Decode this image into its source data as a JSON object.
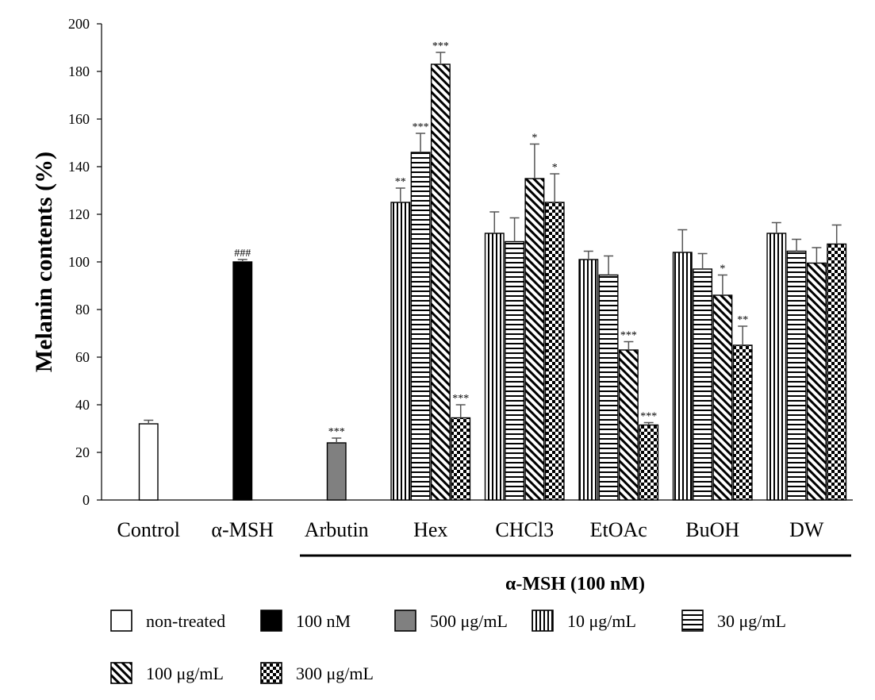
{
  "chart_data": {
    "type": "bar",
    "title": "",
    "xlabel": "",
    "ylabel": "Melanin contents (%)",
    "ylim": [
      0,
      200
    ],
    "yticks": [
      0,
      20,
      40,
      60,
      80,
      100,
      120,
      140,
      160,
      180,
      200
    ],
    "grid": false,
    "legend_position": "bottom",
    "bracket_label": "α-MSH (100 nM)",
    "bracket_groups": [
      "Arbutin",
      "DW"
    ],
    "series_styles": {
      "non-treated": "white",
      "100 nM": "black",
      "500 μg/mL": "gray",
      "10 μg/mL": "vertical-lines",
      "30 μg/mL": "horizontal-lines",
      "100 μg/mL": "diagonal-lines",
      "300 μg/mL": "checker"
    },
    "legend": [
      {
        "label": "non-treated",
        "style": "white"
      },
      {
        "label": "100 nM",
        "style": "black"
      },
      {
        "label": "500 μg/mL",
        "style": "gray"
      },
      {
        "label": "10 μg/mL",
        "style": "vertical-lines"
      },
      {
        "label": "30 μg/mL",
        "style": "horizontal-lines"
      },
      {
        "label": "100 μg/mL",
        "style": "diagonal-lines"
      },
      {
        "label": "300 μg/mL",
        "style": "checker"
      }
    ],
    "groups": [
      {
        "label": "Control",
        "bars": [
          {
            "series": "non-treated",
            "value": 32,
            "error": 1.5,
            "sig": ""
          }
        ]
      },
      {
        "label": "α-MSH",
        "bars": [
          {
            "series": "100 nM",
            "value": 100,
            "error": 1,
            "sig": "###"
          }
        ]
      },
      {
        "label": "Arbutin",
        "bars": [
          {
            "series": "500 μg/mL",
            "value": 24,
            "error": 2,
            "sig": "***"
          }
        ]
      },
      {
        "label": "Hex",
        "bars": [
          {
            "series": "10 μg/mL",
            "value": 125,
            "error": 6,
            "sig": "**"
          },
          {
            "series": "30 μg/mL",
            "value": 146,
            "error": 8,
            "sig": "***"
          },
          {
            "series": "100 μg/mL",
            "value": 183,
            "error": 5,
            "sig": "***"
          },
          {
            "series": "300 μg/mL",
            "value": 34.5,
            "error": 5.5,
            "sig": "***"
          }
        ]
      },
      {
        "label": "CHCl3",
        "bars": [
          {
            "series": "10 μg/mL",
            "value": 112,
            "error": 9,
            "sig": ""
          },
          {
            "series": "30 μg/mL",
            "value": 108.5,
            "error": 10,
            "sig": ""
          },
          {
            "series": "100 μg/mL",
            "value": 135,
            "error": 14.5,
            "sig": "*"
          },
          {
            "series": "300 μg/mL",
            "value": 125,
            "error": 12,
            "sig": "*"
          }
        ]
      },
      {
        "label": "EtOAc",
        "bars": [
          {
            "series": "10 μg/mL",
            "value": 101,
            "error": 3.5,
            "sig": ""
          },
          {
            "series": "30 μg/mL",
            "value": 94.5,
            "error": 8,
            "sig": ""
          },
          {
            "series": "100 μg/mL",
            "value": 63,
            "error": 3.5,
            "sig": "***"
          },
          {
            "series": "300 μg/mL",
            "value": 31.5,
            "error": 1,
            "sig": "***"
          }
        ]
      },
      {
        "label": "BuOH",
        "bars": [
          {
            "series": "10 μg/mL",
            "value": 104,
            "error": 9.5,
            "sig": ""
          },
          {
            "series": "30 μg/mL",
            "value": 97,
            "error": 6.5,
            "sig": ""
          },
          {
            "series": "100 μg/mL",
            "value": 86,
            "error": 8.5,
            "sig": "*"
          },
          {
            "series": "300 μg/mL",
            "value": 65,
            "error": 8,
            "sig": "**"
          }
        ]
      },
      {
        "label": "DW",
        "bars": [
          {
            "series": "10 μg/mL",
            "value": 112,
            "error": 4.5,
            "sig": ""
          },
          {
            "series": "30 μg/mL",
            "value": 104.5,
            "error": 5,
            "sig": ""
          },
          {
            "series": "100 μg/mL",
            "value": 99.5,
            "error": 6.5,
            "sig": ""
          },
          {
            "series": "300 μg/mL",
            "value": 107.5,
            "error": 8,
            "sig": ""
          }
        ]
      }
    ]
  }
}
